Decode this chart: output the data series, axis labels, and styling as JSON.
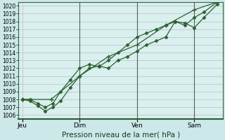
{
  "xlabel": "Pression niveau de la mer( hPa )",
  "bg_color": "#cce8e8",
  "plot_bg_color": "#d8f0ee",
  "grid_color": "#c8b8cc",
  "line_color": "#2d6030",
  "vline_color": "#506050",
  "ylim": [
    1005.5,
    1020.5
  ],
  "yticks": [
    1006,
    1007,
    1008,
    1009,
    1010,
    1011,
    1012,
    1013,
    1014,
    1015,
    1016,
    1017,
    1018,
    1019,
    1020
  ],
  "xtick_positions": [
    0,
    3,
    6,
    9
  ],
  "xtick_labels": [
    "Jeu",
    "Dim",
    "Ven",
    "Sam"
  ],
  "xlim": [
    -0.2,
    10.5
  ],
  "vline_positions": [
    3,
    6,
    9
  ],
  "line1_x": [
    0,
    0.4,
    0.8,
    1.2,
    1.6,
    2.0,
    2.5,
    3.0,
    3.5,
    4.0,
    4.5,
    5.0,
    5.5,
    6.0,
    6.5,
    7.0,
    7.5,
    8.0,
    8.5,
    9.0,
    9.5,
    10.2
  ],
  "line1_y": [
    1008.0,
    1007.8,
    1007.2,
    1006.5,
    1007.0,
    1007.8,
    1009.5,
    1011.0,
    1012.0,
    1012.3,
    1012.0,
    1013.0,
    1013.5,
    1014.2,
    1015.0,
    1015.5,
    1016.0,
    1018.0,
    1017.8,
    1017.2,
    1018.5,
    1020.2
  ],
  "line2_x": [
    0,
    0.4,
    0.8,
    1.2,
    1.6,
    2.0,
    2.5,
    3.0,
    3.5,
    4.0,
    4.5,
    5.0,
    5.5,
    6.0,
    6.5,
    7.0,
    7.5,
    8.0,
    8.5,
    9.0,
    9.5,
    10.2
  ],
  "line2_y": [
    1008.0,
    1008.0,
    1007.5,
    1007.0,
    1007.5,
    1009.0,
    1010.5,
    1012.0,
    1012.5,
    1012.2,
    1013.0,
    1014.0,
    1015.0,
    1016.0,
    1016.5,
    1017.0,
    1017.5,
    1018.0,
    1017.5,
    1018.5,
    1019.2,
    1020.5
  ],
  "line3_x": [
    0,
    1.5,
    3.0,
    4.5,
    6.0,
    7.5,
    9.0,
    10.2
  ],
  "line3_y": [
    1008.0,
    1008.0,
    1011.0,
    1013.5,
    1015.0,
    1017.5,
    1019.5,
    1020.5
  ],
  "ytick_fontsize": 5.5,
  "xtick_fontsize": 6.5,
  "xlabel_fontsize": 7.5
}
